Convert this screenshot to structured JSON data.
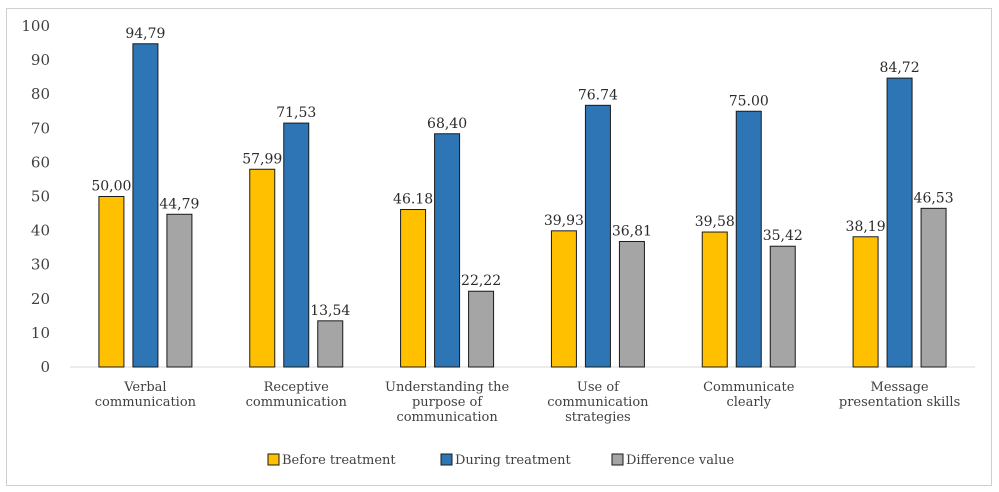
{
  "chart_data": {
    "type": "bar",
    "categories": [
      [
        "Verbal",
        "communication"
      ],
      [
        "Receptive",
        "communication"
      ],
      [
        "Understanding the",
        "purpose of",
        "communication"
      ],
      [
        "Use of",
        "communication",
        "strategies"
      ],
      [
        "Communicate",
        "clearly"
      ],
      [
        "Message",
        "presentation skills"
      ]
    ],
    "series": [
      {
        "name": "Before treatment",
        "color": "#FFC000",
        "values": [
          50.0,
          57.99,
          46.18,
          39.93,
          39.58,
          38.19
        ],
        "labels": [
          "50,00",
          "57,99",
          "46.18",
          "39,93",
          "39,58",
          "38,19"
        ]
      },
      {
        "name": "During treatment",
        "color": "#2E75B6",
        "values": [
          94.79,
          71.53,
          68.4,
          76.74,
          75.0,
          84.72
        ],
        "labels": [
          "94,79",
          "71,53",
          "68,40",
          "76.74",
          "75.00",
          "84,72"
        ]
      },
      {
        "name": "Difference value",
        "color": "#A5A5A5",
        "values": [
          44.79,
          13.54,
          22.22,
          36.81,
          35.42,
          46.53
        ],
        "labels": [
          "44,79",
          "13,54",
          "22,22",
          "36,81",
          "35,42",
          "46,53"
        ]
      }
    ],
    "ylim": [
      0,
      100
    ],
    "yticks": [
      0,
      10,
      20,
      30,
      40,
      50,
      60,
      70,
      80,
      90,
      100
    ],
    "title": "",
    "xlabel": "",
    "ylabel": "",
    "grid": false,
    "legend_position": "bottom"
  }
}
